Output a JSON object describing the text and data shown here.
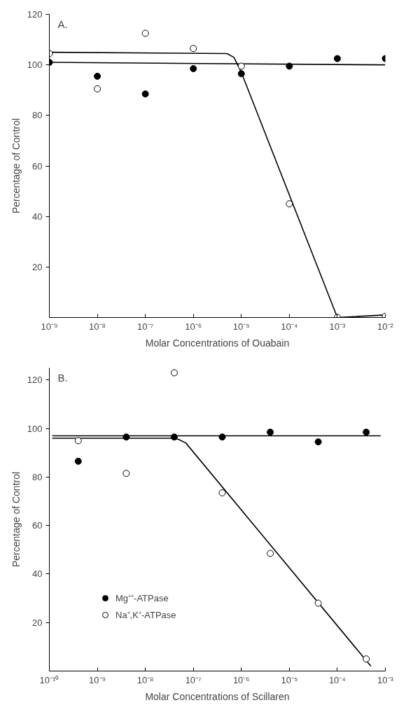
{
  "chart_data": [
    {
      "type": "scatter",
      "title": "A.",
      "xlabel": "Molar Concentrations of Ouabain",
      "ylabel": "Percentage of Control",
      "log": "x",
      "grid": false,
      "legend": false,
      "marker": "circle",
      "xlim": [
        1e-09,
        0.01
      ],
      "ylim": [
        0,
        120
      ],
      "xticks": [
        {
          "value": 1e-09,
          "label": "10⁻⁹"
        },
        {
          "value": 1e-08,
          "label": "10⁻⁸"
        },
        {
          "value": 1e-07,
          "label": "10⁻⁷"
        },
        {
          "value": 1e-06,
          "label": "10⁻⁶"
        },
        {
          "value": 1e-05,
          "label": "10⁻⁵"
        },
        {
          "value": 0.0001,
          "label": "10⁻⁴"
        },
        {
          "value": 0.001,
          "label": "10⁻³"
        },
        {
          "value": 0.01,
          "label": "10⁻²"
        }
      ],
      "yticks": [
        20,
        40,
        60,
        80,
        100,
        120
      ],
      "series": [
        {
          "type": "line",
          "marker": "none",
          "color": "#000000",
          "x": [
            1e-09,
            0.01
          ],
          "values": [
            101,
            100
          ]
        },
        {
          "type": "line",
          "marker": "none",
          "color": "#000000",
          "x": [
            1e-09,
            5e-06,
            7e-06,
            1e-05,
            0.001,
            0.01
          ],
          "values": [
            105,
            104.5,
            103,
            97,
            0,
            1
          ]
        },
        {
          "color": "#000000",
          "x": [
            1e-09,
            1e-08,
            1e-07,
            1e-06,
            1e-05,
            0.0001,
            0.001,
            0.01
          ],
          "values": [
            101,
            95.5,
            88.5,
            98.5,
            96.5,
            99.5,
            102.5,
            102.5
          ]
        },
        {
          "color": "#ffffff",
          "x": [
            1e-09,
            1e-08,
            1e-07,
            1e-06,
            1e-05,
            0.0001,
            0.001,
            0.01
          ],
          "values": [
            104.5,
            90.5,
            112.5,
            106.5,
            99.5,
            45,
            0,
            0.5
          ]
        }
      ]
    },
    {
      "type": "scatter",
      "title": "B.",
      "xlabel": "Molar Concentrations of Scillaren",
      "ylabel": "Percentage of Control",
      "log": "x",
      "grid": false,
      "legend": "bottom left",
      "marker": "circle",
      "xlim": [
        1e-10,
        0.001
      ],
      "ylim": [
        0,
        125
      ],
      "xticks": [
        {
          "value": 1e-10,
          "label": "10⁻¹⁰"
        },
        {
          "value": 1e-09,
          "label": "10⁻⁹"
        },
        {
          "value": 1e-08,
          "label": "10⁻⁸"
        },
        {
          "value": 1e-07,
          "label": "10⁻⁷"
        },
        {
          "value": 1e-06,
          "label": "10⁻⁶"
        },
        {
          "value": 1e-05,
          "label": "10⁻⁵"
        },
        {
          "value": 0.0001,
          "label": "10⁻⁴"
        },
        {
          "value": 0.001,
          "label": "10⁻³"
        }
      ],
      "yticks": [
        20,
        40,
        60,
        80,
        100,
        120
      ],
      "series": [
        {
          "type": "line",
          "marker": "none",
          "color": "#000000",
          "x": [
            1.15e-10,
            0.0008
          ],
          "values": [
            97,
            97
          ]
        },
        {
          "type": "line",
          "marker": "none",
          "color": "#000000",
          "x": [
            1.15e-10,
            4e-08,
            5e-08,
            7e-08,
            0.0005
          ],
          "values": [
            96,
            96,
            95.5,
            94,
            2
          ]
        },
        {
          "name": "Mg⁺⁺-ATPase",
          "color": "#000000",
          "x": [
            4e-10,
            4e-09,
            4e-08,
            4e-07,
            4e-06,
            4e-05,
            0.0004
          ],
          "values": [
            86.5,
            96.5,
            96.5,
            96.5,
            98.5,
            94.5,
            98.5
          ]
        },
        {
          "name": "Na⁺,K⁺-ATPase",
          "color": "#ffffff",
          "x": [
            4e-10,
            4e-09,
            4e-08,
            4e-07,
            4e-06,
            4e-05,
            0.0004
          ],
          "values": [
            95,
            81.5,
            123,
            73.5,
            48.5,
            28,
            5
          ]
        }
      ]
    }
  ]
}
